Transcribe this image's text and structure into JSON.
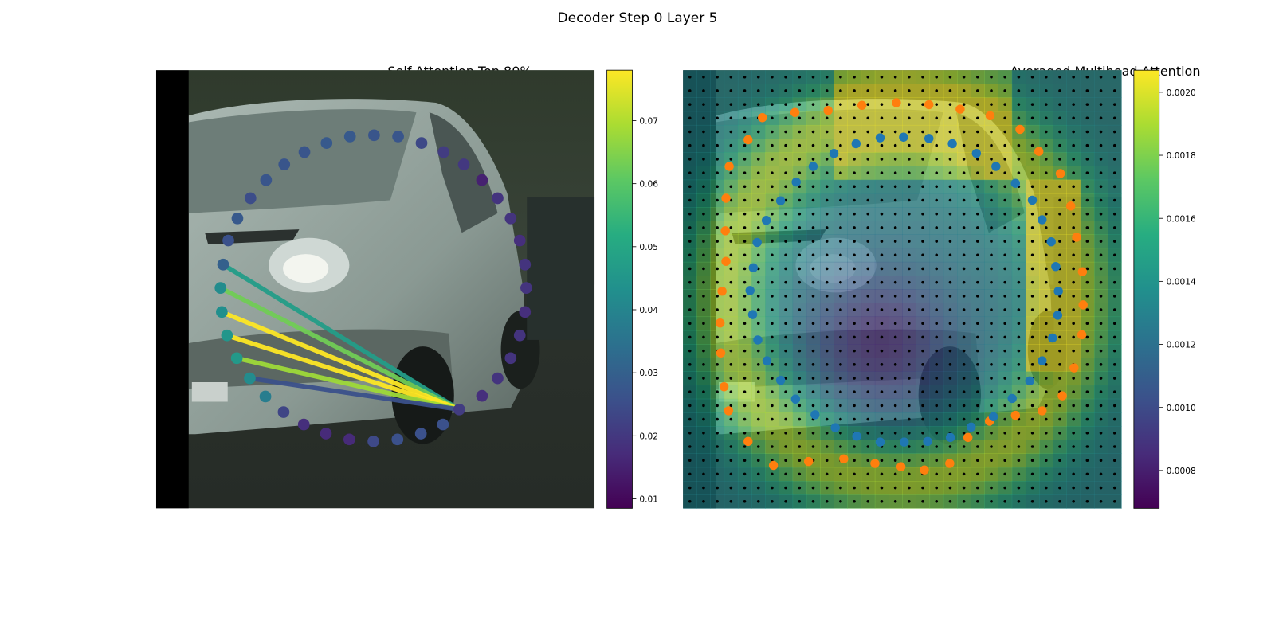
{
  "figure": {
    "title": "Decoder Step 0 Layer 5"
  },
  "chart_data": [
    {
      "type": "scatter",
      "title": "Self-Attention Top 80%",
      "background": "photo of a white van",
      "colormap": "viridis",
      "colorbar": {
        "range": [
          0.0085,
          0.078
        ],
        "ticks": [
          "0.01",
          "0.02",
          "0.03",
          "0.04",
          "0.05",
          "0.06",
          "0.07"
        ]
      },
      "query_point": {
        "x": 706,
        "y": 630,
        "value": 0.021
      },
      "attention_lines": [
        {
          "from_x": 343,
          "from_y": 407,
          "value": 0.047
        },
        {
          "from_x": 339,
          "from_y": 443,
          "value": 0.063
        },
        {
          "from_x": 341,
          "from_y": 480,
          "value": 0.078
        },
        {
          "from_x": 349,
          "from_y": 516,
          "value": 0.078
        },
        {
          "from_x": 364,
          "from_y": 551,
          "value": 0.068
        },
        {
          "from_x": 384,
          "from_y": 582,
          "value": 0.026
        }
      ],
      "points": [
        {
          "x": 343,
          "y": 407,
          "value": 0.03
        },
        {
          "x": 339,
          "y": 443,
          "value": 0.042
        },
        {
          "x": 341,
          "y": 480,
          "value": 0.043
        },
        {
          "x": 349,
          "y": 516,
          "value": 0.045
        },
        {
          "x": 364,
          "y": 551,
          "value": 0.046
        },
        {
          "x": 384,
          "y": 582,
          "value": 0.042
        },
        {
          "x": 408,
          "y": 610,
          "value": 0.038
        },
        {
          "x": 436,
          "y": 634,
          "value": 0.023
        },
        {
          "x": 467,
          "y": 653,
          "value": 0.018
        },
        {
          "x": 501,
          "y": 667,
          "value": 0.017
        },
        {
          "x": 537,
          "y": 676,
          "value": 0.017
        },
        {
          "x": 574,
          "y": 679,
          "value": 0.024
        },
        {
          "x": 611,
          "y": 676,
          "value": 0.026
        },
        {
          "x": 647,
          "y": 667,
          "value": 0.026
        },
        {
          "x": 681,
          "y": 653,
          "value": 0.026
        },
        {
          "x": 706,
          "y": 630,
          "value": 0.021
        },
        {
          "x": 741,
          "y": 609,
          "value": 0.018
        },
        {
          "x": 765,
          "y": 582,
          "value": 0.019
        },
        {
          "x": 785,
          "y": 551,
          "value": 0.019
        },
        {
          "x": 799,
          "y": 516,
          "value": 0.019
        },
        {
          "x": 807,
          "y": 480,
          "value": 0.018
        },
        {
          "x": 809,
          "y": 443,
          "value": 0.019
        },
        {
          "x": 807,
          "y": 407,
          "value": 0.019
        },
        {
          "x": 799,
          "y": 370,
          "value": 0.018
        },
        {
          "x": 785,
          "y": 336,
          "value": 0.019
        },
        {
          "x": 765,
          "y": 305,
          "value": 0.019
        },
        {
          "x": 741,
          "y": 277,
          "value": 0.015
        },
        {
          "x": 713,
          "y": 253,
          "value": 0.02
        },
        {
          "x": 682,
          "y": 234,
          "value": 0.021
        },
        {
          "x": 648,
          "y": 220,
          "value": 0.024
        },
        {
          "x": 612,
          "y": 210,
          "value": 0.027
        },
        {
          "x": 575,
          "y": 208,
          "value": 0.027
        },
        {
          "x": 538,
          "y": 210,
          "value": 0.028
        },
        {
          "x": 502,
          "y": 220,
          "value": 0.028
        },
        {
          "x": 468,
          "y": 234,
          "value": 0.027
        },
        {
          "x": 437,
          "y": 253,
          "value": 0.027
        },
        {
          "x": 409,
          "y": 277,
          "value": 0.027
        },
        {
          "x": 385,
          "y": 305,
          "value": 0.025
        },
        {
          "x": 365,
          "y": 336,
          "value": 0.028
        },
        {
          "x": 351,
          "y": 370,
          "value": 0.026
        }
      ]
    },
    {
      "type": "heatmap",
      "title": "Averaged Multihead Attention",
      "background": "photo of a white van",
      "colormap": "viridis",
      "colorbar": {
        "range": [
          0.00068,
          0.00207
        ],
        "ticks": [
          "0.0008",
          "0.0010",
          "0.0012",
          "0.0014",
          "0.0016",
          "0.0018",
          "0.0020"
        ]
      },
      "grid": {
        "rows": 32,
        "cols": 32
      },
      "series": [
        {
          "color": "#ff7f0e",
          "points": [
            [
              1150,
              215
            ],
            [
              1172,
              181
            ],
            [
              1222,
              173
            ],
            [
              1273,
              170
            ],
            [
              1325,
              162
            ],
            [
              1378,
              158
            ],
            [
              1428,
              161
            ],
            [
              1476,
              168
            ],
            [
              1522,
              178
            ],
            [
              1568,
              199
            ],
            [
              1597,
              233
            ],
            [
              1630,
              267
            ],
            [
              1646,
              317
            ],
            [
              1655,
              365
            ],
            [
              1664,
              418
            ],
            [
              1665,
              469
            ],
            [
              1663,
              515
            ],
            [
              1651,
              566
            ],
            [
              1633,
              609
            ],
            [
              1602,
              632
            ],
            [
              1561,
              639
            ],
            [
              1521,
              648
            ],
            [
              1488,
              673
            ],
            [
              1460,
              713
            ],
            [
              1421,
              723
            ],
            [
              1385,
              718
            ],
            [
              1345,
              713
            ],
            [
              1297,
              706
            ],
            [
              1243,
              710
            ],
            [
              1189,
              716
            ],
            [
              1150,
              679
            ],
            [
              1120,
              632
            ],
            [
              1113,
              595
            ],
            [
              1108,
              543
            ],
            [
              1107,
              497
            ],
            [
              1110,
              448
            ],
            [
              1116,
              402
            ],
            [
              1115,
              355
            ],
            [
              1116,
              305
            ],
            [
              1121,
              256
            ]
          ]
        },
        {
          "color": "#1f77b4",
          "points": [
            [
              1158,
              412
            ],
            [
              1153,
              447
            ],
            [
              1157,
              484
            ],
            [
              1165,
              523
            ],
            [
              1179,
              555
            ],
            [
              1200,
              585
            ],
            [
              1223,
              614
            ],
            [
              1253,
              638
            ],
            [
              1284,
              658
            ],
            [
              1317,
              671
            ],
            [
              1353,
              680
            ],
            [
              1390,
              680
            ],
            [
              1426,
              679
            ],
            [
              1461,
              673
            ],
            [
              1493,
              657
            ],
            [
              1527,
              641
            ],
            [
              1556,
              613
            ],
            [
              1583,
              586
            ],
            [
              1602,
              555
            ],
            [
              1618,
              520
            ],
            [
              1626,
              485
            ],
            [
              1627,
              448
            ],
            [
              1623,
              410
            ],
            [
              1616,
              372
            ],
            [
              1602,
              338
            ],
            [
              1587,
              308
            ],
            [
              1561,
              282
            ],
            [
              1531,
              256
            ],
            [
              1501,
              236
            ],
            [
              1464,
              221
            ],
            [
              1428,
              213
            ],
            [
              1389,
              211
            ],
            [
              1353,
              212
            ],
            [
              1316,
              221
            ],
            [
              1282,
              236
            ],
            [
              1250,
              256
            ],
            [
              1224,
              280
            ],
            [
              1200,
              309
            ],
            [
              1178,
              339
            ],
            [
              1164,
              373
            ]
          ]
        }
      ]
    }
  ]
}
